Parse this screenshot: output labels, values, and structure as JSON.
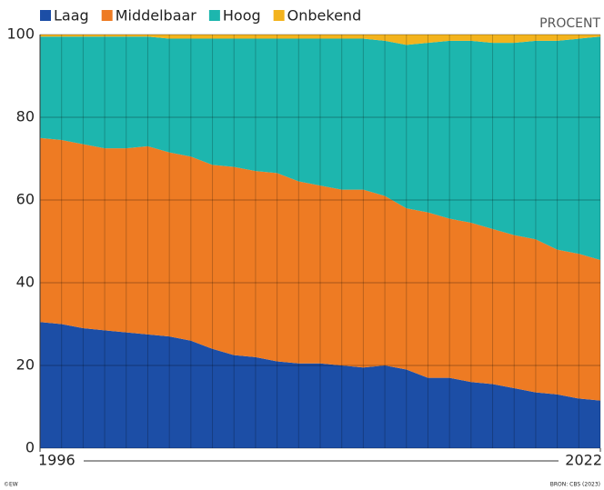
{
  "chart_data": {
    "type": "stacked_area",
    "unit_label": "PROCENT",
    "x": [
      1996,
      1997,
      1998,
      1999,
      2000,
      2001,
      2002,
      2003,
      2004,
      2005,
      2006,
      2007,
      2008,
      2009,
      2010,
      2011,
      2012,
      2013,
      2014,
      2015,
      2016,
      2017,
      2018,
      2019,
      2020,
      2021,
      2022
    ],
    "series": [
      {
        "name": "Laag",
        "color": "#1c4ea6",
        "values": [
          30.5,
          30,
          29,
          28.5,
          28,
          27.5,
          27,
          26,
          24,
          22.5,
          22,
          21,
          20.5,
          20.5,
          20,
          19.5,
          20,
          19,
          17,
          17,
          16,
          15.5,
          14.5,
          13.5,
          13,
          12,
          11.5
        ]
      },
      {
        "name": "Middelbaar",
        "color": "#ee7b23",
        "values": [
          44.5,
          44.5,
          44.5,
          44,
          44.5,
          45.5,
          44.5,
          44.5,
          44.5,
          45.5,
          45,
          45.5,
          44,
          43,
          42.5,
          43,
          41,
          39,
          40,
          38.5,
          38.5,
          37.5,
          37,
          37,
          35,
          35,
          34
        ]
      },
      {
        "name": "Hoog",
        "color": "#1db6ae",
        "values": [
          24.5,
          25,
          26,
          27,
          27,
          26.5,
          27.5,
          28.5,
          30.5,
          31,
          32,
          32.5,
          34.5,
          35.5,
          36.5,
          36.5,
          37.5,
          39.5,
          41,
          43,
          44,
          45,
          46.5,
          48,
          50.5,
          52,
          54
        ]
      },
      {
        "name": "Onbekend",
        "color": "#f3b31d",
        "values": [
          0.5,
          0.5,
          0.5,
          0.5,
          0.5,
          0.5,
          1,
          1,
          1,
          1,
          1,
          1,
          1,
          1,
          1,
          1,
          1.5,
          2.5,
          2,
          1.5,
          1.5,
          2,
          2,
          1.5,
          1.5,
          1,
          0.5
        ]
      }
    ],
    "xlim": [
      1996,
      2022
    ],
    "xticks": [
      1996,
      2022
    ],
    "ylim": [
      0,
      100
    ],
    "yticks": [
      0,
      20,
      40,
      60,
      80,
      100
    ],
    "grid": true,
    "credit": "©EW",
    "source": "BRON: CBS (2023)"
  }
}
